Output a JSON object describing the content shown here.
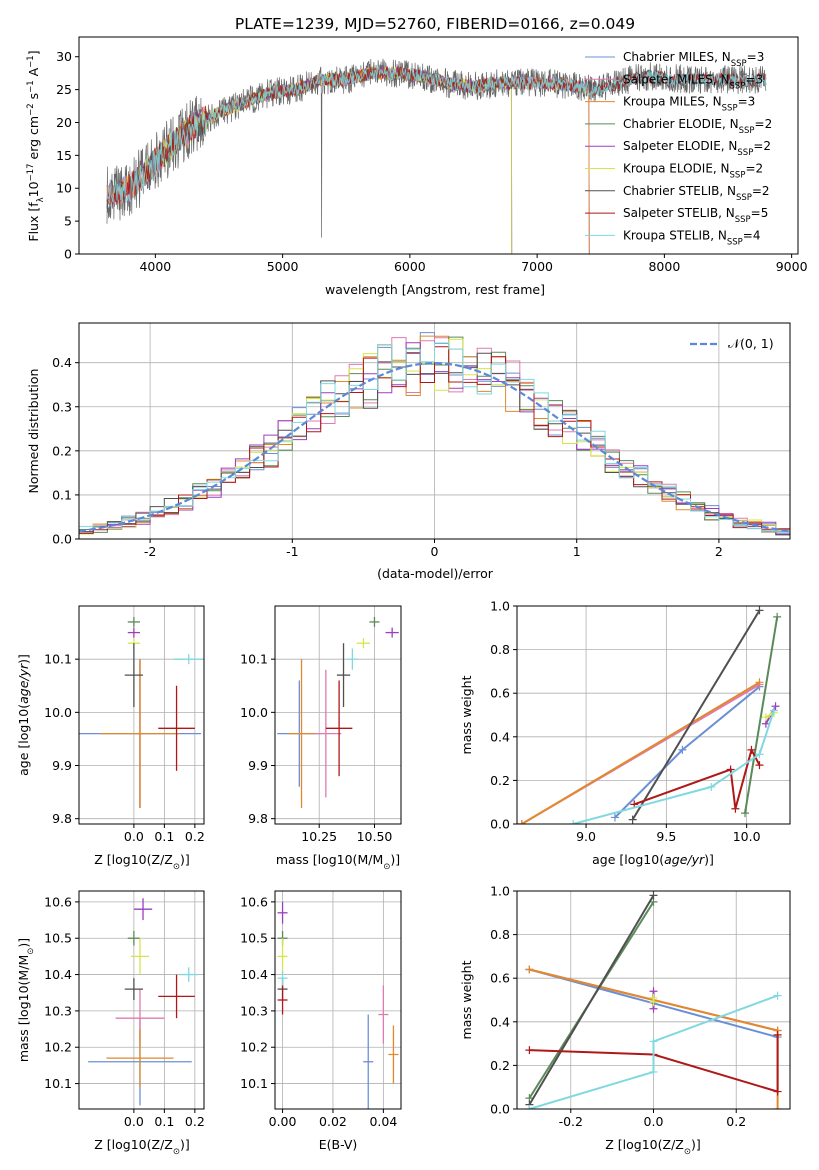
{
  "figure": {
    "title": "PLATE=1239, MJD=52760, FIBERID=0166, z=0.049"
  },
  "colors": {
    "Chabrier MILES": "#6b8fd6",
    "Salpeter MILES": "#e07ab0",
    "Kroupa MILES": "#e08a2c",
    "Chabrier ELODIE": "#5a8a5a",
    "Salpeter ELODIE": "#9b3fbf",
    "Kroupa ELODIE": "#d6e64a",
    "Chabrier STELIB": "#505050",
    "Salpeter STELIB": "#b01818",
    "Kroupa STELIB": "#80d8e0"
  },
  "chart_data": [
    {
      "id": "spectrum",
      "type": "line",
      "xlabel": "wavelength [Angstrom, rest frame]",
      "ylabel": "Flux [f_λ 10^-17 erg cm^-2 s^-1 A^-1]",
      "xlim": [
        3400,
        9050
      ],
      "ylim": [
        0,
        33
      ],
      "xticks": [
        4000,
        5000,
        6000,
        7000,
        8000,
        9000
      ],
      "yticks": [
        0,
        5,
        10,
        15,
        20,
        25,
        30
      ],
      "legend_position": "top-right",
      "legend": [
        {
          "model": "Chabrier MILES",
          "nssp": "3"
        },
        {
          "model": "Salpeter MILES",
          "nssp": "3"
        },
        {
          "model": "Kroupa MILES",
          "nssp": "3"
        },
        {
          "model": "Chabrier ELODIE",
          "nssp": "2"
        },
        {
          "model": "Salpeter ELODIE",
          "nssp": "2"
        },
        {
          "model": "Kroupa ELODIE",
          "nssp": "2"
        },
        {
          "model": "Chabrier STELIB",
          "nssp": "2"
        },
        {
          "model": "Salpeter STELIB",
          "nssp": "5"
        },
        {
          "model": "Kroupa STELIB",
          "nssp": "4"
        }
      ],
      "continuum": [
        [
          3620,
          9
        ],
        [
          3800,
          10
        ],
        [
          3950,
          13
        ],
        [
          4100,
          16
        ],
        [
          4300,
          19.5
        ],
        [
          4500,
          21.5
        ],
        [
          4700,
          23
        ],
        [
          4900,
          24.5
        ],
        [
          5100,
          25
        ],
        [
          5300,
          26.5
        ],
        [
          5500,
          26.5
        ],
        [
          5700,
          27.5
        ],
        [
          5900,
          27.5
        ],
        [
          6100,
          27
        ],
        [
          6300,
          26
        ],
        [
          6500,
          25.5
        ],
        [
          6700,
          26
        ],
        [
          6900,
          26
        ],
        [
          7100,
          26
        ],
        [
          7300,
          25.5
        ],
        [
          7500,
          25
        ],
        [
          7700,
          26.5
        ],
        [
          7900,
          27
        ],
        [
          8200,
          26.5
        ],
        [
          8500,
          26.5
        ],
        [
          8800,
          26.5
        ]
      ],
      "model_end_wavelength": {
        "Kroupa ELODIE": 6800,
        "Chabrier ELODIE": 6800,
        "Salpeter ELODIE": 6800,
        "MILES": 7410,
        "STELIB": 8800
      }
    },
    {
      "id": "residuals",
      "type": "histogram",
      "xlabel": "(data-model)/error",
      "ylabel": "Normed distribution",
      "xlim": [
        -2.5,
        2.5
      ],
      "ylim": [
        0,
        0.49
      ],
      "xticks": [
        -2,
        -1,
        0,
        1,
        2
      ],
      "yticks": [
        0.0,
        0.1,
        0.2,
        0.3,
        0.4
      ],
      "bin_width": 0.1,
      "reference_curve": {
        "name": "𝒩(0,1)",
        "mean": 0,
        "sigma": 1
      },
      "legend_position": "top-right"
    },
    {
      "id": "age_vs_Z",
      "type": "errorbar",
      "xlabel": "Z [log10(Z/Z⊙)]",
      "ylabel": "age [log10(age/yr)]",
      "xlim": [
        -0.18,
        0.23
      ],
      "ylim": [
        9.79,
        10.2
      ],
      "xticks": [
        0.0,
        0.1,
        0.2
      ],
      "yticks": [
        9.8,
        9.9,
        10.0,
        10.1
      ],
      "points": [
        {
          "model": "Chabrier MILES",
          "x": 0.02,
          "y": 9.96,
          "xerr": 0.2,
          "yerr": 0.14
        },
        {
          "model": "Salpeter MILES",
          "x": 0.02,
          "y": 9.96,
          "xerr": 0.0,
          "yerr": 0.14
        },
        {
          "model": "Kroupa MILES",
          "x": 0.02,
          "y": 9.96,
          "xerr": 0.13,
          "yerr": 0.14
        },
        {
          "model": "Chabrier ELODIE",
          "x": 0.0,
          "y": 10.17,
          "xerr": 0.02,
          "yerr": 0.0
        },
        {
          "model": "Salpeter ELODIE",
          "x": 0.0,
          "y": 10.15,
          "xerr": 0.02,
          "yerr": 0.0
        },
        {
          "model": "Kroupa ELODIE",
          "x": 0.0,
          "y": 10.13,
          "xerr": 0.02,
          "yerr": 0.0
        },
        {
          "model": "Chabrier STELIB",
          "x": 0.0,
          "y": 10.07,
          "xerr": 0.03,
          "yerr": 0.06
        },
        {
          "model": "Salpeter STELIB",
          "x": 0.14,
          "y": 9.97,
          "xerr": 0.06,
          "yerr": 0.08
        },
        {
          "model": "Kroupa STELIB",
          "x": 0.18,
          "y": 10.1,
          "xerr": 0.05,
          "yerr": 0.0
        }
      ]
    },
    {
      "id": "age_vs_mass",
      "type": "errorbar",
      "xlabel": "mass [log10(M/M⊙)]",
      "ylabel": "",
      "xlim": [
        10.05,
        10.62
      ],
      "ylim": [
        9.79,
        10.2
      ],
      "xticks": [
        10.25,
        10.5
      ],
      "yticks": [
        9.8,
        9.9,
        10.0,
        10.1
      ],
      "points": [
        {
          "model": "Chabrier MILES",
          "x": 10.16,
          "y": 9.96,
          "xerr": 0.1,
          "yerr": 0.1
        },
        {
          "model": "Salpeter MILES",
          "x": 10.28,
          "y": 9.96,
          "xerr": 0.07,
          "yerr": 0.12
        },
        {
          "model": "Kroupa MILES",
          "x": 10.17,
          "y": 9.96,
          "xerr": 0.06,
          "yerr": 0.14
        },
        {
          "model": "Chabrier ELODIE",
          "x": 10.5,
          "y": 10.17,
          "xerr": 0.02,
          "yerr": 0.0
        },
        {
          "model": "Salpeter ELODIE",
          "x": 10.58,
          "y": 10.15,
          "xerr": 0.03,
          "yerr": 0.0
        },
        {
          "model": "Kroupa ELODIE",
          "x": 10.45,
          "y": 10.13,
          "xerr": 0.03,
          "yerr": 0.0
        },
        {
          "model": "Chabrier STELIB",
          "x": 10.36,
          "y": 10.07,
          "xerr": 0.03,
          "yerr": 0.06
        },
        {
          "model": "Salpeter STELIB",
          "x": 10.34,
          "y": 9.97,
          "xerr": 0.06,
          "yerr": 0.09
        },
        {
          "model": "Kroupa STELIB",
          "x": 10.4,
          "y": 10.1,
          "xerr": 0.0,
          "yerr": 0.02
        }
      ]
    },
    {
      "id": "weight_vs_age",
      "type": "line",
      "xlabel": "age [log10(age/yr)]",
      "ylabel": "mass weight",
      "xlim": [
        8.57,
        10.27
      ],
      "ylim": [
        0,
        1
      ],
      "xticks": [
        9.0,
        9.5,
        10.0
      ],
      "yticks": [
        0.0,
        0.2,
        0.4,
        0.6,
        0.8,
        1.0
      ],
      "series": [
        {
          "model": "Chabrier MILES",
          "x": [
            9.18,
            9.6,
            10.08
          ],
          "y": [
            0.03,
            0.34,
            0.63
          ]
        },
        {
          "model": "Salpeter MILES",
          "x": [
            8.6,
            10.08
          ],
          "y": [
            0.0,
            0.64
          ]
        },
        {
          "model": "Kroupa MILES",
          "x": [
            8.6,
            10.08
          ],
          "y": [
            0.0,
            0.65
          ]
        },
        {
          "model": "Chabrier ELODIE",
          "x": [
            9.99,
            10.19
          ],
          "y": [
            0.05,
            0.95
          ]
        },
        {
          "model": "Salpeter ELODIE",
          "x": [
            10.12,
            10.18
          ],
          "y": [
            0.46,
            0.54
          ]
        },
        {
          "model": "Kroupa ELODIE",
          "x": [
            10.12,
            10.17
          ],
          "y": [
            0.49,
            0.51
          ]
        },
        {
          "model": "Chabrier STELIB",
          "x": [
            9.29,
            10.08
          ],
          "y": [
            0.02,
            0.98
          ]
        },
        {
          "model": "Salpeter STELIB",
          "x": [
            9.3,
            9.9,
            9.93,
            10.03,
            10.08
          ],
          "y": [
            0.09,
            0.25,
            0.07,
            0.34,
            0.27
          ]
        },
        {
          "model": "Kroupa STELIB",
          "x": [
            8.92,
            9.78,
            10.08,
            10.17
          ],
          "y": [
            0.0,
            0.17,
            0.32,
            0.52
          ]
        }
      ]
    },
    {
      "id": "mass_vs_Z",
      "type": "errorbar",
      "xlabel": "Z [log10(Z/Z⊙)]",
      "ylabel": "mass [log10(M/M⊙)]",
      "xlim": [
        -0.18,
        0.23
      ],
      "ylim": [
        10.03,
        10.63
      ],
      "xticks": [
        0.0,
        0.1,
        0.2
      ],
      "yticks": [
        10.1,
        10.2,
        10.3,
        10.4,
        10.5,
        10.6
      ],
      "points": [
        {
          "model": "Chabrier MILES",
          "x": 0.02,
          "y": 10.16,
          "xerr": 0.17,
          "yerr": 0.12
        },
        {
          "model": "Salpeter MILES",
          "x": 0.02,
          "y": 10.28,
          "xerr": 0.08,
          "yerr": 0.08
        },
        {
          "model": "Kroupa MILES",
          "x": 0.02,
          "y": 10.17,
          "xerr": 0.11,
          "yerr": 0.08
        },
        {
          "model": "Chabrier ELODIE",
          "x": 0.0,
          "y": 10.5,
          "xerr": 0.02,
          "yerr": 0.02
        },
        {
          "model": "Salpeter ELODIE",
          "x": 0.03,
          "y": 10.58,
          "xerr": 0.03,
          "yerr": 0.03
        },
        {
          "model": "Kroupa ELODIE",
          "x": 0.02,
          "y": 10.45,
          "xerr": 0.03,
          "yerr": 0.05
        },
        {
          "model": "Chabrier STELIB",
          "x": 0.0,
          "y": 10.36,
          "xerr": 0.03,
          "yerr": 0.03
        },
        {
          "model": "Salpeter STELIB",
          "x": 0.14,
          "y": 10.34,
          "xerr": 0.06,
          "yerr": 0.06
        },
        {
          "model": "Kroupa STELIB",
          "x": 0.18,
          "y": 10.4,
          "xerr": 0.03,
          "yerr": 0.02
        }
      ]
    },
    {
      "id": "mass_vs_ebv",
      "type": "errorbar",
      "xlabel": "E(B-V)",
      "ylabel": "",
      "xlim": [
        -0.003,
        0.047
      ],
      "ylim": [
        10.03,
        10.63
      ],
      "xticks": [
        0.0,
        0.02,
        0.04
      ],
      "yticks": [
        10.1,
        10.2,
        10.3,
        10.4,
        10.5,
        10.6
      ],
      "points": [
        {
          "model": "Chabrier MILES",
          "x": 0.034,
          "y": 10.16,
          "xerr": 0.0,
          "yerr": 0.13
        },
        {
          "model": "Salpeter MILES",
          "x": 0.04,
          "y": 10.29,
          "xerr": 0.0,
          "yerr": 0.08
        },
        {
          "model": "Kroupa MILES",
          "x": 0.044,
          "y": 10.18,
          "xerr": 0.0,
          "yerr": 0.08
        },
        {
          "model": "Chabrier ELODIE",
          "x": 0.0,
          "y": 10.5,
          "xerr": 0.0,
          "yerr": 0.02
        },
        {
          "model": "Salpeter ELODIE",
          "x": 0.0,
          "y": 10.57,
          "xerr": 0.0,
          "yerr": 0.03
        },
        {
          "model": "Kroupa ELODIE",
          "x": 0.0,
          "y": 10.45,
          "xerr": 0.0,
          "yerr": 0.05
        },
        {
          "model": "Chabrier STELIB",
          "x": 0.0,
          "y": 10.36,
          "xerr": 0.0,
          "yerr": 0.03
        },
        {
          "model": "Salpeter STELIB",
          "x": 0.0,
          "y": 10.33,
          "xerr": 0.0,
          "yerr": 0.04
        },
        {
          "model": "Kroupa STELIB",
          "x": 0.0,
          "y": 10.39,
          "xerr": 0.0,
          "yerr": 0.02
        }
      ]
    },
    {
      "id": "weight_vs_Z",
      "type": "line",
      "xlabel": "Z [log10(Z/Z⊙)]",
      "ylabel": "mass weight",
      "xlim": [
        -0.33,
        0.33
      ],
      "ylim": [
        0,
        1
      ],
      "xticks": [
        -0.2,
        0.0,
        0.2
      ],
      "yticks": [
        0.0,
        0.2,
        0.4,
        0.6,
        0.8,
        1.0
      ],
      "series": [
        {
          "model": "Chabrier MILES",
          "x": [
            -0.3,
            0.3
          ],
          "y": [
            0.64,
            0.33
          ]
        },
        {
          "model": "Salpeter MILES",
          "x": [
            -0.3,
            0.3
          ],
          "y": [
            0.64,
            0.36
          ]
        },
        {
          "model": "Kroupa MILES",
          "x": [
            -0.3,
            0.3,
            0.3
          ],
          "y": [
            0.64,
            0.36,
            0.0
          ]
        },
        {
          "model": "Chabrier ELODIE",
          "x": [
            -0.3,
            0.0
          ],
          "y": [
            0.05,
            0.95
          ]
        },
        {
          "model": "Salpeter ELODIE",
          "x": [
            0.0,
            0.0
          ],
          "y": [
            0.46,
            0.54
          ]
        },
        {
          "model": "Kroupa ELODIE",
          "x": [
            0.0,
            0.0
          ],
          "y": [
            0.49,
            0.51
          ]
        },
        {
          "model": "Chabrier STELIB",
          "x": [
            -0.3,
            0.0
          ],
          "y": [
            0.02,
            0.98
          ]
        },
        {
          "model": "Salpeter STELIB",
          "x": [
            -0.3,
            0.0,
            0.3,
            0.3
          ],
          "y": [
            0.27,
            0.25,
            0.08,
            0.34
          ]
        },
        {
          "model": "Kroupa STELIB",
          "x": [
            -0.3,
            0.0,
            0.0,
            0.3
          ],
          "y": [
            0.0,
            0.17,
            0.31,
            0.52
          ]
        }
      ]
    }
  ]
}
